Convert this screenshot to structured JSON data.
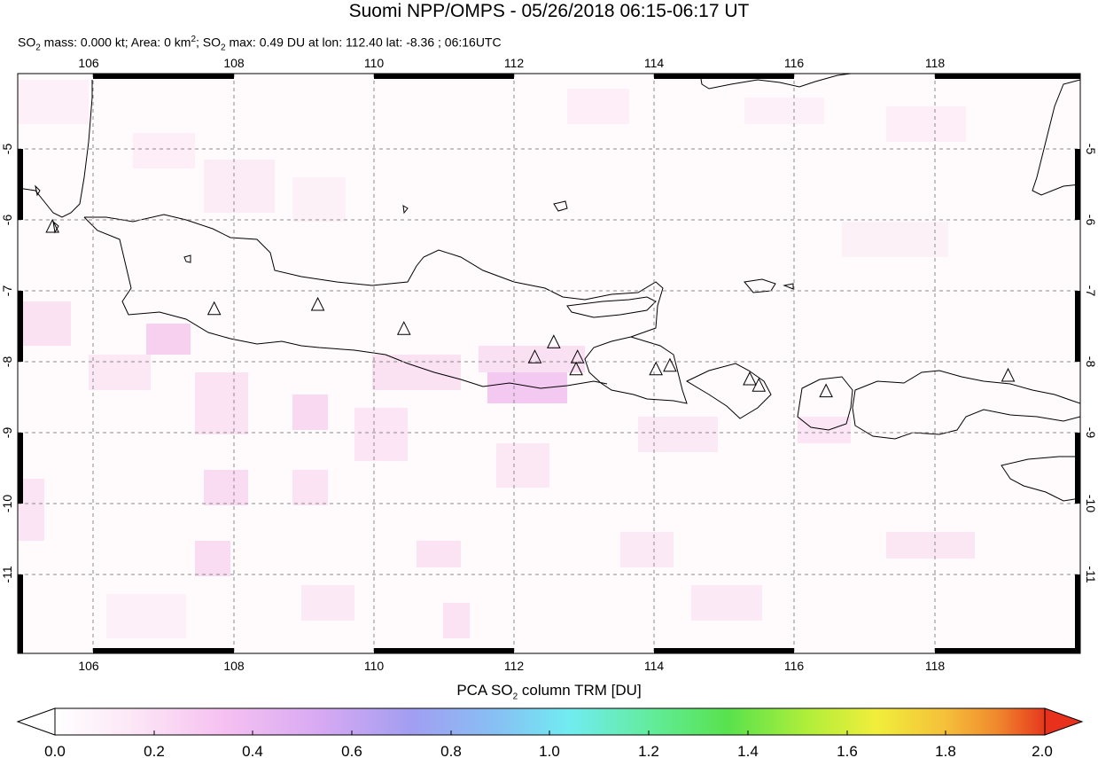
{
  "title": "Suomi NPP/OMPS - 05/26/2018 06:15-06:17 UT",
  "subtitle": {
    "so2_label": "SO",
    "mass_text": " mass: 0.000 kt; Area: 0 km",
    "max_label_prefix": "; SO",
    "max_text": " max: 0.49 DU at lon: 112.40 lat: -8.36 ; 06:16UTC",
    "subscript": "2",
    "superscript": "2"
  },
  "map": {
    "lon_range": [
      105,
      120
    ],
    "lat_range": [
      -12,
      -3
    ],
    "lon_ticks": [
      "106",
      "108",
      "110",
      "112",
      "114",
      "116",
      "118"
    ],
    "lat_ticks": [
      "-5",
      "-6",
      "-7",
      "-8",
      "-9",
      "-10",
      "-11"
    ],
    "volcanoes": [
      {
        "lon": 105.42,
        "lat": -6.1
      },
      {
        "lon": 107.73,
        "lat": -7.26
      },
      {
        "lon": 109.21,
        "lat": -7.2
      },
      {
        "lon": 110.44,
        "lat": -7.54
      },
      {
        "lon": 112.31,
        "lat": -7.94
      },
      {
        "lon": 112.58,
        "lat": -7.73
      },
      {
        "lon": 112.92,
        "lat": -7.94
      },
      {
        "lon": 112.9,
        "lat": -8.11
      },
      {
        "lon": 114.04,
        "lat": -8.11
      },
      {
        "lon": 114.24,
        "lat": -8.06
      },
      {
        "lon": 115.38,
        "lat": -8.25
      },
      {
        "lon": 115.51,
        "lat": -8.34
      },
      {
        "lon": 116.47,
        "lat": -8.42
      },
      {
        "lon": 119.07,
        "lat": -8.2
      }
    ]
  },
  "colorbar": {
    "title_prefix": "PCA SO",
    "title_sub": "2",
    "title_suffix": " column TRM [DU]",
    "range": [
      0.0,
      2.0
    ],
    "ticks": [
      "0.0",
      "0.2",
      "0.4",
      "0.6",
      "0.8",
      "1.0",
      "1.2",
      "1.4",
      "1.6",
      "1.8",
      "2.0"
    ],
    "colors": [
      "#ffffff",
      "#fbe0f5",
      "#f3b8f0",
      "#c9a3f2",
      "#9a9df0",
      "#84cdf4",
      "#6ff4f0",
      "#66ee9a",
      "#55e24c",
      "#a6ee3a",
      "#f0f03a",
      "#f6c53a",
      "#f2902f",
      "#e6401f"
    ],
    "over_color": "#e8311d",
    "under_color": "#ffffff"
  }
}
